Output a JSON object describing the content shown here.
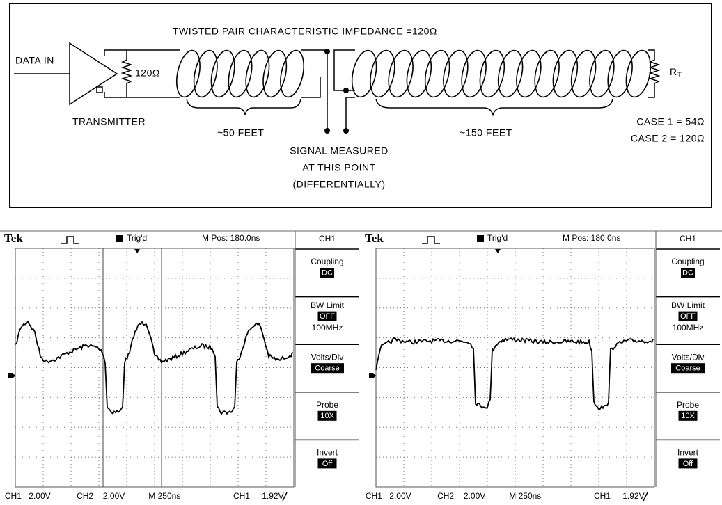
{
  "diagram": {
    "title": "TWISTED PAIR CHARACTERISTIC IMPEDANCE =120Ω",
    "input": "DATA IN",
    "source_resistor": "120Ω",
    "transmitter": "TRANSMITTER",
    "near_length": "~50 FEET",
    "far_length": "~150 FEET",
    "measurement": [
      "SIGNAL MEASURED",
      "AT THIS POINT",
      "(DIFFERENTIALLY)"
    ],
    "termination": {
      "symbol": "R",
      "subscript": "T"
    },
    "cases": [
      "CASE 1 = 54Ω",
      "CASE 2 = 120Ω"
    ]
  },
  "scopes": [
    {
      "header": {
        "brand": "Tek",
        "trigger": "Trig'd",
        "position": "M Pos: 180.0ns",
        "channel": "CH1"
      },
      "menu": [
        {
          "label": "Coupling",
          "value": "DC"
        },
        {
          "label": "BW Limit",
          "value": "OFF",
          "extra": "100MHz"
        },
        {
          "label": "Volts/Div",
          "value": "Coarse"
        },
        {
          "label": "Probe",
          "value": "10X"
        },
        {
          "label": "Invert",
          "value": "Off"
        }
      ],
      "status": [
        "CH1",
        "2.00V",
        "CH2",
        "2.00V",
        "M 250ns",
        "CH1",
        "1.92V"
      ]
    },
    {
      "header": {
        "brand": "Tek",
        "trigger": "Trig'd",
        "position": "M Pos: 180.0ns",
        "channel": "CH1"
      },
      "menu": [
        {
          "label": "Coupling",
          "value": "DC"
        },
        {
          "label": "BW Limit",
          "value": "OFF",
          "extra": "100MHz"
        },
        {
          "label": "Volts/Div",
          "value": "Coarse"
        },
        {
          "label": "Probe",
          "value": "10X"
        },
        {
          "label": "Invert",
          "value": "Off"
        }
      ],
      "status": [
        "CH1",
        "2.00V",
        "CH2",
        "2.00V",
        "M 250ns",
        "CH1",
        "1.92V"
      ]
    }
  ]
}
